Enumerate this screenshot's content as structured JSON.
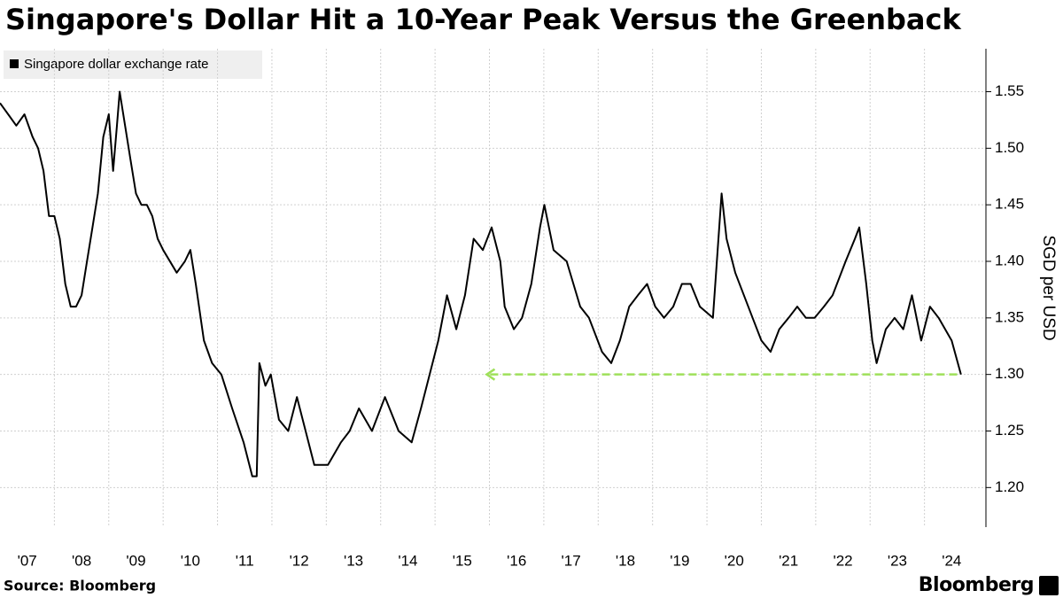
{
  "chart_data": {
    "type": "line",
    "title": "Singapore's Dollar Hit a 10-Year Peak Versus the Greenback",
    "y_axis_label": "SGD per USD",
    "source": "Source: Bloomberg",
    "brand": "Bloomberg",
    "x": [
      2007.0,
      2007.15,
      2007.3,
      2007.45,
      2007.6,
      2007.7,
      2007.8,
      2007.9,
      2008.0,
      2008.1,
      2008.2,
      2008.3,
      2008.4,
      2008.5,
      2008.6,
      2008.7,
      2008.8,
      2008.9,
      2009.0,
      2009.08,
      2009.15,
      2009.2,
      2009.3,
      2009.4,
      2009.5,
      2009.6,
      2009.7,
      2009.8,
      2009.9,
      2010.0,
      2010.25,
      2010.4,
      2010.5,
      2010.6,
      2010.75,
      2010.9,
      2011.07,
      2011.27,
      2011.48,
      2011.64,
      2011.72,
      2011.77,
      2011.88,
      2011.98,
      2012.13,
      2012.3,
      2012.46,
      2012.62,
      2012.78,
      2013.03,
      2013.27,
      2013.43,
      2013.6,
      2013.84,
      2014.08,
      2014.33,
      2014.57,
      2014.74,
      2014.9,
      2015.06,
      2015.22,
      2015.39,
      2015.55,
      2015.71,
      2015.88,
      2016.04,
      2016.2,
      2016.28,
      2016.45,
      2016.6,
      2016.77,
      2016.93,
      2017.01,
      2017.18,
      2017.42,
      2017.67,
      2017.83,
      2018.07,
      2018.24,
      2018.4,
      2018.57,
      2018.73,
      2018.9,
      2019.05,
      2019.21,
      2019.38,
      2019.54,
      2019.7,
      2019.87,
      2020.11,
      2020.27,
      2020.36,
      2020.52,
      2020.68,
      2020.84,
      2021.0,
      2021.17,
      2021.33,
      2021.5,
      2021.66,
      2021.82,
      2021.98,
      2022.15,
      2022.31,
      2022.55,
      2022.72,
      2022.8,
      2022.93,
      2023.04,
      2023.12,
      2023.29,
      2023.45,
      2023.61,
      2023.77,
      2023.94,
      2024.1,
      2024.26,
      2024.5,
      2024.67
    ],
    "series": [
      {
        "name": "Singapore dollar exchange rate",
        "color": "#000000",
        "values": [
          1.54,
          1.53,
          1.52,
          1.53,
          1.51,
          1.5,
          1.48,
          1.44,
          1.44,
          1.42,
          1.38,
          1.36,
          1.36,
          1.37,
          1.4,
          1.43,
          1.46,
          1.51,
          1.53,
          1.48,
          1.52,
          1.55,
          1.52,
          1.49,
          1.46,
          1.45,
          1.45,
          1.44,
          1.42,
          1.41,
          1.39,
          1.4,
          1.41,
          1.38,
          1.33,
          1.31,
          1.3,
          1.27,
          1.24,
          1.21,
          1.21,
          1.31,
          1.29,
          1.3,
          1.26,
          1.25,
          1.28,
          1.25,
          1.22,
          1.22,
          1.24,
          1.25,
          1.27,
          1.25,
          1.28,
          1.25,
          1.24,
          1.27,
          1.3,
          1.33,
          1.37,
          1.34,
          1.37,
          1.42,
          1.41,
          1.43,
          1.4,
          1.36,
          1.34,
          1.35,
          1.38,
          1.43,
          1.45,
          1.41,
          1.4,
          1.36,
          1.35,
          1.32,
          1.31,
          1.33,
          1.36,
          1.37,
          1.38,
          1.36,
          1.35,
          1.36,
          1.38,
          1.38,
          1.36,
          1.35,
          1.46,
          1.42,
          1.39,
          1.37,
          1.35,
          1.33,
          1.32,
          1.34,
          1.35,
          1.36,
          1.35,
          1.35,
          1.36,
          1.37,
          1.4,
          1.42,
          1.43,
          1.38,
          1.33,
          1.31,
          1.34,
          1.35,
          1.34,
          1.37,
          1.33,
          1.36,
          1.35,
          1.33,
          1.3
        ]
      }
    ],
    "arrow": {
      "x": [
        2024.6,
        2015.95
      ],
      "value": 1.3,
      "color": "#9fe05a"
    },
    "xlim": [
      2007.0,
      2025.13
    ],
    "xticks": [
      {
        "value": 2007.5,
        "label": "'07"
      },
      {
        "value": 2008.5,
        "label": "'08"
      },
      {
        "value": 2009.5,
        "label": "'09"
      },
      {
        "value": 2010.5,
        "label": "'10"
      },
      {
        "value": 2011.5,
        "label": "'11"
      },
      {
        "value": 2012.5,
        "label": "'12"
      },
      {
        "value": 2013.5,
        "label": "'13"
      },
      {
        "value": 2014.5,
        "label": "'14"
      },
      {
        "value": 2015.5,
        "label": "'15"
      },
      {
        "value": 2016.5,
        "label": "'16"
      },
      {
        "value": 2017.5,
        "label": "'17"
      },
      {
        "value": 2018.5,
        "label": "'18"
      },
      {
        "value": 2019.5,
        "label": "'19"
      },
      {
        "value": 2020.5,
        "label": "'20"
      },
      {
        "value": 2021.5,
        "label": "'21"
      },
      {
        "value": 2022.5,
        "label": "'22"
      },
      {
        "value": 2023.5,
        "label": "'23"
      },
      {
        "value": 2024.5,
        "label": "'24"
      }
    ],
    "xgrid": [
      2008,
      2009,
      2010,
      2011,
      2012,
      2013,
      2014,
      2015,
      2016,
      2017,
      2018,
      2019,
      2020,
      2021,
      2022,
      2023,
      2024
    ],
    "ylim": [
      1.165,
      1.588
    ],
    "yticks": [
      {
        "value": 1.2,
        "label": "1.20"
      },
      {
        "value": 1.25,
        "label": "1.25"
      },
      {
        "value": 1.3,
        "label": "1.30"
      },
      {
        "value": 1.35,
        "label": "1.35"
      },
      {
        "value": 1.4,
        "label": "1.40"
      },
      {
        "value": 1.45,
        "label": "1.45"
      },
      {
        "value": 1.5,
        "label": "1.50"
      },
      {
        "value": 1.55,
        "label": "1.55"
      }
    ],
    "grid": true
  }
}
